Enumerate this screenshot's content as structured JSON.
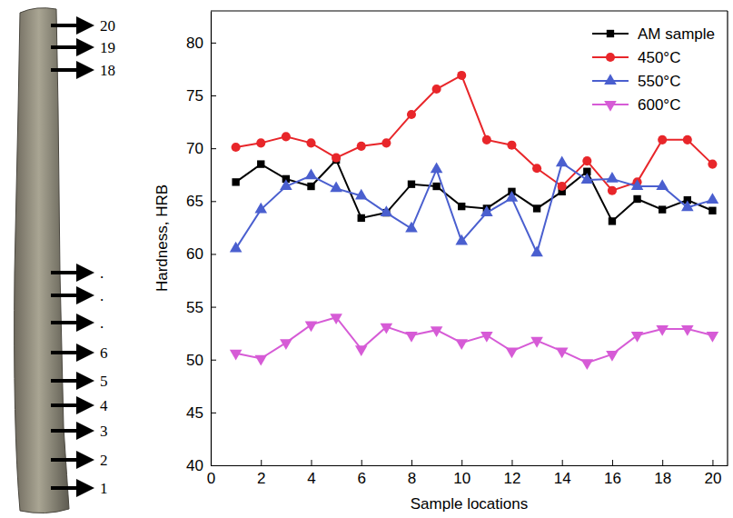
{
  "chart_data": {
    "type": "line",
    "x_label": "Sample locations",
    "y_label": "Hardness, HRB",
    "x": [
      1,
      2,
      3,
      4,
      5,
      6,
      7,
      8,
      9,
      10,
      11,
      12,
      13,
      14,
      15,
      16,
      17,
      18,
      19,
      20
    ],
    "xlim": [
      0,
      20.6
    ],
    "xticks": [
      0,
      2,
      4,
      6,
      8,
      10,
      12,
      14,
      16,
      18,
      20
    ],
    "ylim": [
      40,
      83
    ],
    "yticks": [
      40,
      45,
      50,
      55,
      60,
      65,
      70,
      75,
      80
    ],
    "legend": "top-right",
    "series": [
      {
        "name": "AM sample",
        "color": "#000000",
        "marker": "square",
        "values": [
          66.8,
          68.5,
          67.1,
          66.4,
          68.9,
          63.4,
          63.9,
          66.6,
          66.4,
          64.5,
          64.3,
          65.9,
          64.3,
          65.9,
          67.8,
          63.1,
          65.2,
          64.2,
          65.1,
          64.1
        ]
      },
      {
        "name": "450°C",
        "color": "#e8262a",
        "marker": "circle",
        "values": [
          70.1,
          70.5,
          71.1,
          70.5,
          69.1,
          70.2,
          70.5,
          73.2,
          75.6,
          76.9,
          70.8,
          70.3,
          68.1,
          66.4,
          68.8,
          66.0,
          66.8,
          70.8,
          70.8,
          68.5
        ]
      },
      {
        "name": "550°C",
        "color": "#4a5fcf",
        "marker": "triangle-up",
        "values": [
          60.5,
          64.2,
          66.4,
          67.4,
          66.2,
          65.5,
          63.9,
          62.4,
          68.0,
          61.2,
          63.9,
          65.3,
          60.1,
          68.6,
          67.0,
          67.1,
          66.4,
          66.4,
          64.4,
          65.1
        ]
      },
      {
        "name": "600°C",
        "color": "#d65bd6",
        "marker": "triangle-down",
        "values": [
          50.6,
          50.1,
          51.6,
          53.3,
          54.0,
          51.0,
          53.1,
          52.3,
          52.8,
          51.6,
          52.3,
          50.8,
          51.8,
          50.8,
          49.7,
          50.5,
          52.3,
          52.9,
          52.9,
          52.3
        ]
      }
    ]
  },
  "sample_image": {
    "labels": [
      "20",
      "19",
      "18",
      ".",
      ".",
      ".",
      "6",
      "5",
      "4",
      "3",
      "2",
      "1"
    ]
  }
}
